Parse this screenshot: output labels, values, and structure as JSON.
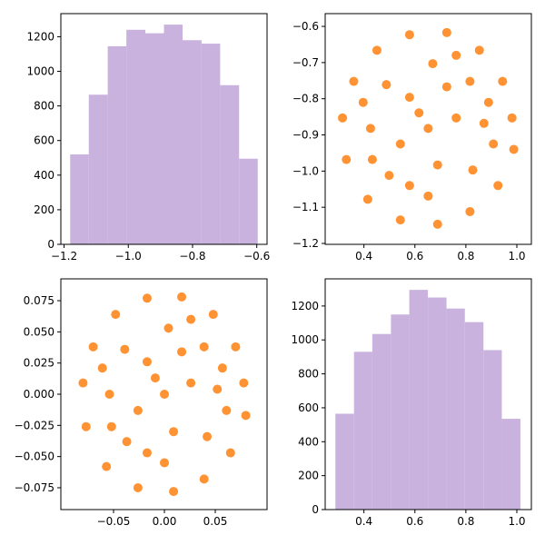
{
  "chart_data": [
    {
      "type": "histogram",
      "color": "#c9b3de",
      "bins": [
        -1.181,
        -1.123,
        -1.064,
        -1.006,
        -0.947,
        -0.889,
        -0.831,
        -0.772,
        -0.714,
        -0.655,
        -0.597
      ],
      "values": [
        520,
        865,
        1145,
        1240,
        1220,
        1270,
        1180,
        1160,
        920,
        495
      ],
      "xlim": [
        -1.21,
        -0.568
      ],
      "ylim": [
        0,
        1333.5
      ],
      "xticks": [
        {
          "value": -1.2,
          "label": "−1.2"
        },
        {
          "value": -1.0,
          "label": "−1.0"
        },
        {
          "value": -0.8,
          "label": "−0.8"
        },
        {
          "value": -0.6,
          "label": "−0.6"
        }
      ],
      "yticks": [
        0,
        200,
        400,
        600,
        800,
        1000,
        1200
      ]
    },
    {
      "type": "scatter",
      "color": "#ff7f0e",
      "x": [
        0.652,
        0.762,
        0.579,
        0.543,
        0.689,
        0.871,
        0.816,
        0.67,
        0.488,
        0.426,
        0.499,
        0.652,
        0.827,
        0.981,
        0.944,
        0.853,
        0.725,
        0.579,
        0.451,
        0.36,
        0.316,
        0.331,
        0.415,
        0.543,
        0.689,
        0.816,
        0.926,
        0.988,
        0.908,
        0.762,
        0.397,
        0.579,
        0.725,
        0.433,
        0.889,
        0.616
      ],
      "y": [
        -0.882,
        -0.853,
        -0.796,
        -0.925,
        -0.983,
        -0.868,
        -0.752,
        -0.703,
        -0.761,
        -0.882,
        -1.012,
        -1.069,
        -0.997,
        -0.853,
        -0.752,
        -0.666,
        -0.617,
        -0.623,
        -0.666,
        -0.752,
        -0.853,
        -0.968,
        -1.078,
        -1.135,
        -1.147,
        -1.112,
        -1.04,
        -0.94,
        -0.925,
        -0.68,
        -0.81,
        -1.04,
        -0.767,
        -0.968,
        -0.81,
        -0.839
      ],
      "xlim": [
        0.248,
        1.057
      ],
      "ylim": [
        -1.2025,
        -0.5647
      ],
      "xticks": [
        0.4,
        0.6,
        0.8,
        {
          "value": 1.0,
          "label": "1.0"
        }
      ],
      "yticks": [
        {
          "value": -1.2,
          "label": "−1.2"
        },
        {
          "value": -1.1,
          "label": "−1.1"
        },
        {
          "value": -1.0,
          "label": "−1.0"
        },
        {
          "value": -0.9,
          "label": "−0.9"
        },
        {
          "value": -0.8,
          "label": "−0.8"
        },
        {
          "value": -0.7,
          "label": "−0.7"
        },
        {
          "value": -0.6,
          "label": "−0.6"
        }
      ]
    },
    {
      "type": "scatter",
      "color": "#ff7f0e",
      "x": [
        0,
        0.026,
        -0.017,
        -0.026,
        0.009,
        0.052,
        0.039,
        0.004,
        -0.039,
        -0.054,
        -0.037,
        0,
        0.042,
        0.078,
        0.07,
        0.048,
        0.017,
        -0.017,
        -0.048,
        -0.07,
        -0.08,
        -0.077,
        -0.057,
        -0.026,
        0.009,
        0.039,
        0.065,
        0.08,
        0.061,
        0.026,
        -0.061,
        -0.017,
        0.017,
        -0.052,
        0.057,
        -0.009
      ],
      "y": [
        0,
        0.009,
        0.026,
        -0.013,
        -0.03,
        0.004,
        0.038,
        0.053,
        0.036,
        0,
        -0.038,
        -0.055,
        -0.034,
        0.009,
        0.038,
        0.064,
        0.078,
        0.077,
        0.064,
        0.038,
        0.009,
        -0.026,
        -0.058,
        -0.075,
        -0.078,
        -0.068,
        -0.047,
        -0.017,
        -0.013,
        0.06,
        0.021,
        -0.047,
        0.034,
        -0.026,
        0.021,
        0.013
      ],
      "xlim": [
        -0.1018,
        0.1009
      ],
      "ylim": [
        -0.0925,
        0.0925
      ],
      "xticks": [
        {
          "value": -0.05,
          "label": "−0.05"
        },
        {
          "value": 0,
          "label": "0.00"
        },
        {
          "value": 0.05,
          "label": "0.05"
        }
      ],
      "yticks": [
        {
          "value": -0.075,
          "label": "−0.075"
        },
        {
          "value": -0.05,
          "label": "−0.050"
        },
        {
          "value": -0.025,
          "label": "−0.025"
        },
        {
          "value": 0,
          "label": "0.000"
        },
        {
          "value": 0.025,
          "label": "0.025"
        },
        {
          "value": 0.05,
          "label": "0.050"
        },
        {
          "value": 0.075,
          "label": "0.075"
        }
      ]
    },
    {
      "type": "histogram",
      "color": "#c9b3de",
      "bins": [
        0.288,
        0.361,
        0.433,
        0.506,
        0.578,
        0.651,
        0.724,
        0.796,
        0.869,
        0.941,
        1.014
      ],
      "values": [
        565,
        930,
        1035,
        1150,
        1295,
        1250,
        1185,
        1105,
        940,
        535
      ],
      "xlim": [
        0.248,
        1.057
      ],
      "ylim": [
        0,
        1360
      ],
      "xticks": [
        0.4,
        0.6,
        0.8,
        {
          "value": 1.0,
          "label": "1.0"
        }
      ],
      "yticks": [
        0,
        200,
        400,
        600,
        800,
        1000,
        1200
      ]
    }
  ]
}
